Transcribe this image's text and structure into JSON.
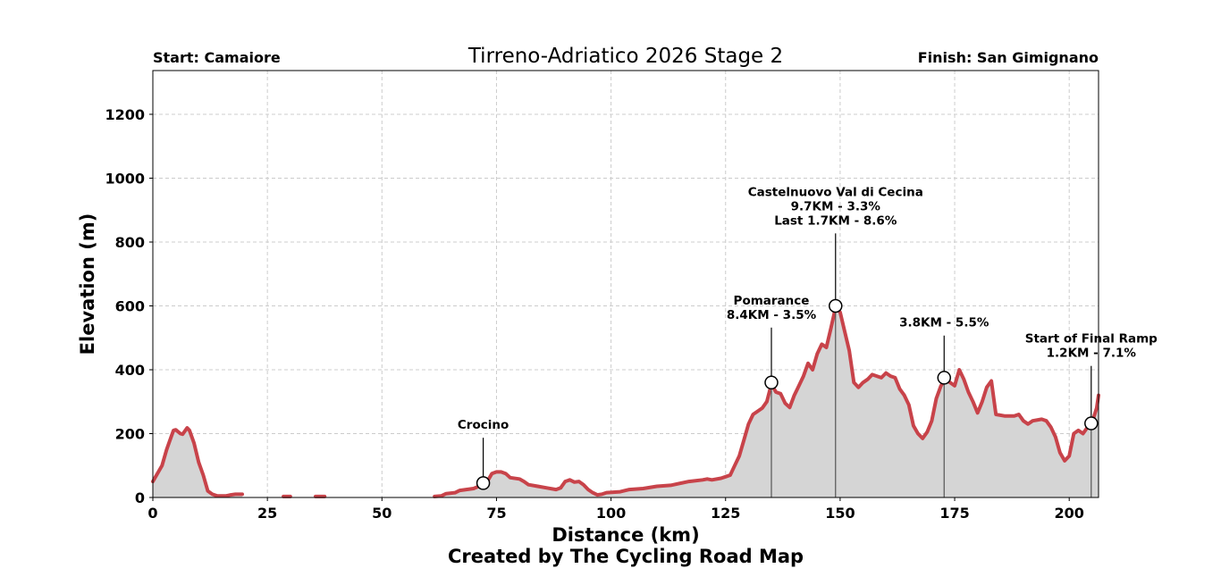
{
  "chart_data": {
    "type": "area",
    "title": "Tirreno-Adriatico 2026 Stage 2",
    "start_label": "Start: Camaiore",
    "finish_label": "Finish: San Gimignano",
    "xlabel": "Distance (km)",
    "ylabel": "Elevation (m)",
    "credit": "Created by The Cycling Road Map",
    "xlim": [
      0,
      206.4
    ],
    "ylim": [
      0,
      1337
    ],
    "xticks": [
      0,
      25,
      50,
      75,
      100,
      125,
      150,
      175,
      200
    ],
    "yticks": [
      0,
      200,
      400,
      600,
      800,
      1000,
      1200
    ],
    "grid": true,
    "line_color": "#c8434a",
    "fill_color": "#d5d5d5",
    "segments": [
      [
        [
          0,
          50
        ],
        [
          1,
          75
        ],
        [
          2,
          100
        ],
        [
          3,
          150
        ],
        [
          4,
          190
        ],
        [
          4.5,
          210
        ],
        [
          5,
          212
        ],
        [
          6,
          200
        ],
        [
          6.5,
          198
        ],
        [
          7.5,
          218
        ],
        [
          8,
          210
        ],
        [
          9,
          170
        ],
        [
          10,
          110
        ],
        [
          11,
          70
        ],
        [
          12,
          20
        ],
        [
          13,
          10
        ],
        [
          14,
          5
        ],
        [
          15,
          5
        ],
        [
          16,
          5
        ],
        [
          17,
          8
        ],
        [
          18,
          10
        ],
        [
          19.5,
          10
        ]
      ],
      [
        [
          28.5,
          3
        ],
        [
          30,
          3
        ]
      ],
      [
        [
          35.5,
          3
        ],
        [
          37.5,
          3
        ]
      ],
      [
        [
          61.5,
          3
        ],
        [
          63,
          5
        ],
        [
          64,
          12
        ],
        [
          66,
          15
        ],
        [
          67,
          22
        ],
        [
          70,
          28
        ],
        [
          72,
          40
        ],
        [
          73,
          50
        ],
        [
          74,
          75
        ],
        [
          75,
          80
        ],
        [
          76,
          80
        ],
        [
          77,
          75
        ],
        [
          78,
          62
        ],
        [
          80,
          58
        ],
        [
          81,
          50
        ],
        [
          82,
          40
        ],
        [
          84,
          35
        ],
        [
          86,
          30
        ],
        [
          88,
          25
        ],
        [
          89,
          30
        ],
        [
          90,
          50
        ],
        [
          91,
          55
        ],
        [
          92,
          48
        ],
        [
          93,
          50
        ],
        [
          94,
          40
        ],
        [
          95,
          25
        ],
        [
          96,
          15
        ],
        [
          97,
          8
        ],
        [
          98,
          10
        ],
        [
          99,
          15
        ],
        [
          102,
          18
        ],
        [
          104,
          25
        ],
        [
          107,
          28
        ],
        [
          110,
          35
        ],
        [
          113,
          38
        ],
        [
          117,
          50
        ],
        [
          120,
          55
        ],
        [
          121,
          58
        ],
        [
          122,
          55
        ],
        [
          124,
          60
        ],
        [
          125,
          65
        ],
        [
          126,
          70
        ],
        [
          127,
          100
        ],
        [
          128,
          130
        ],
        [
          129,
          180
        ],
        [
          130,
          230
        ],
        [
          131,
          260
        ],
        [
          132,
          270
        ],
        [
          133,
          280
        ],
        [
          134,
          300
        ],
        [
          135,
          355
        ],
        [
          136,
          330
        ],
        [
          137,
          325
        ],
        [
          138,
          295
        ],
        [
          139,
          282
        ],
        [
          140,
          320
        ],
        [
          141,
          350
        ],
        [
          142,
          380
        ],
        [
          143,
          420
        ],
        [
          144,
          400
        ],
        [
          145,
          450
        ],
        [
          146,
          480
        ],
        [
          147,
          470
        ],
        [
          148,
          530
        ],
        [
          149,
          595
        ],
        [
          150,
          580
        ],
        [
          151,
          520
        ],
        [
          152,
          460
        ],
        [
          153,
          360
        ],
        [
          154,
          345
        ],
        [
          155,
          360
        ],
        [
          156,
          370
        ],
        [
          157,
          385
        ],
        [
          158,
          380
        ],
        [
          159,
          375
        ],
        [
          160,
          390
        ],
        [
          161,
          380
        ],
        [
          162,
          375
        ],
        [
          163,
          340
        ],
        [
          164,
          320
        ],
        [
          165,
          290
        ],
        [
          166,
          225
        ],
        [
          167,
          200
        ],
        [
          168,
          185
        ],
        [
          169,
          205
        ],
        [
          170,
          240
        ],
        [
          171,
          310
        ],
        [
          172,
          350
        ],
        [
          173,
          370
        ],
        [
          174,
          360
        ],
        [
          175,
          350
        ],
        [
          176,
          400
        ],
        [
          177,
          370
        ],
        [
          178,
          330
        ],
        [
          179,
          300
        ],
        [
          180,
          265
        ],
        [
          181,
          300
        ],
        [
          182,
          345
        ],
        [
          183,
          365
        ],
        [
          184,
          260
        ],
        [
          186,
          255
        ],
        [
          188,
          255
        ],
        [
          189,
          260
        ],
        [
          190,
          240
        ],
        [
          191,
          230
        ],
        [
          192,
          240
        ],
        [
          194,
          245
        ],
        [
          195,
          240
        ],
        [
          196,
          220
        ],
        [
          197,
          190
        ],
        [
          198,
          140
        ],
        [
          199,
          115
        ],
        [
          200,
          130
        ],
        [
          201,
          200
        ],
        [
          202,
          210
        ],
        [
          203,
          200
        ],
        [
          204,
          220
        ],
        [
          205,
          235
        ],
        [
          206,
          280
        ],
        [
          206.4,
          320
        ]
      ]
    ],
    "annotations": [
      {
        "km": 72.1,
        "elev": 45,
        "lines": [
          "Crocino"
        ],
        "label_elev": 215,
        "drop_line": false
      },
      {
        "km": 135.0,
        "elev": 360,
        "lines": [
          "Pomarance",
          "8.4KM - 3.5%"
        ],
        "label_elev": 560,
        "drop_line": true
      },
      {
        "km": 149.0,
        "elev": 600,
        "lines": [
          "Castelnuovo Val di Cecina",
          "9.7KM - 3.3%",
          "Last 1.7KM - 8.6%"
        ],
        "label_elev": 855,
        "drop_line": true
      },
      {
        "km": 172.7,
        "elev": 375,
        "lines": [
          "3.8KM - 5.5%"
        ],
        "label_elev": 535,
        "drop_line": true
      },
      {
        "km": 204.8,
        "elev": 232,
        "lines": [
          "Start of Final Ramp",
          "1.2KM - 7.1%"
        ],
        "label_elev": 440,
        "drop_line": true
      }
    ]
  }
}
